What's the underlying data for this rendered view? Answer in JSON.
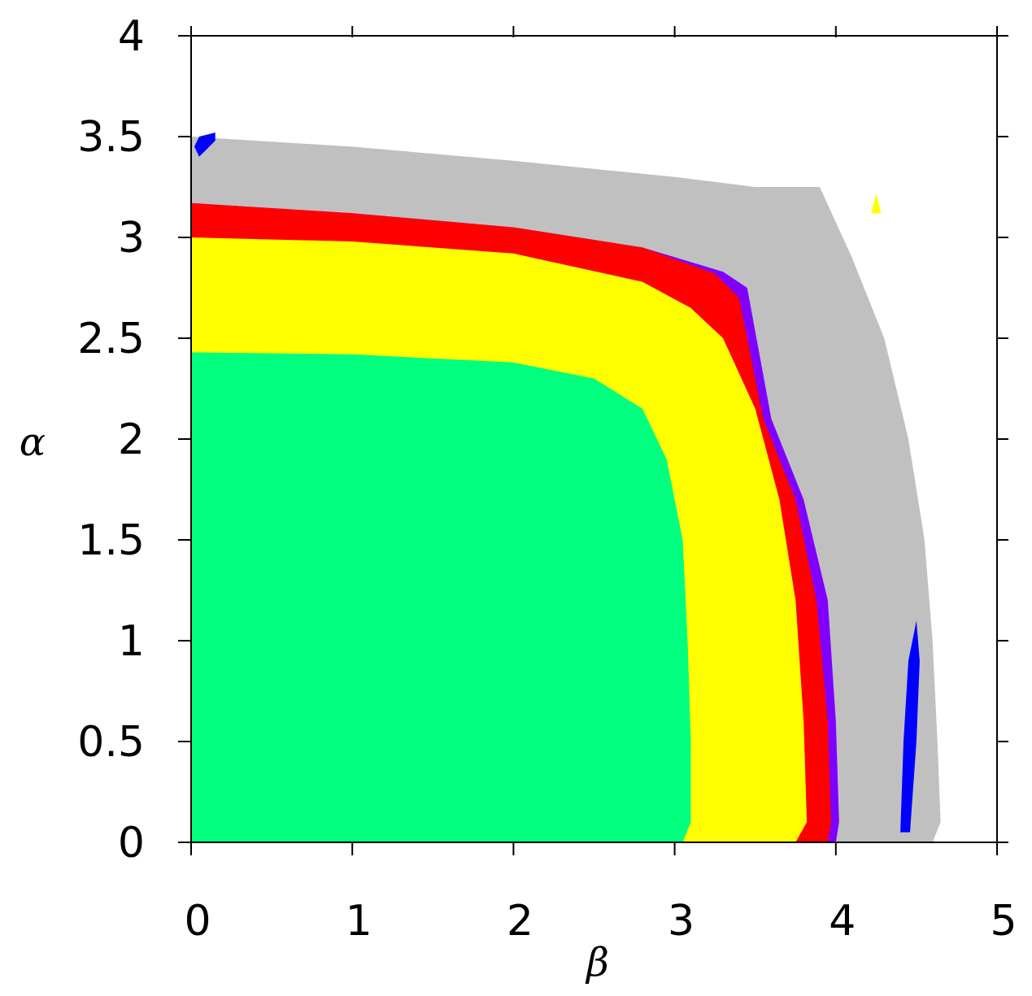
{
  "chart_data": {
    "type": "heatmap",
    "title": "",
    "xlabel": "β",
    "ylabel": "α",
    "xlim": [
      0,
      5
    ],
    "ylim": [
      0,
      4
    ],
    "xticks": [
      0,
      1,
      2,
      3,
      4,
      5
    ],
    "yticks": [
      0,
      0.5,
      1,
      1.5,
      2,
      2.5,
      3,
      3.5,
      4
    ],
    "xtick_labels": [
      "0",
      "1",
      "2",
      "3",
      "4",
      "5"
    ],
    "ytick_labels": [
      "0",
      "0.5",
      "1",
      "1.5",
      "2",
      "2.5",
      "3",
      "3.5",
      "4"
    ],
    "grid": false,
    "legend": "none",
    "regions": [
      {
        "color": "#c0c0c0",
        "boundary": [
          [
            0,
            0
          ],
          [
            0,
            3.5
          ],
          [
            1,
            3.45
          ],
          [
            2,
            3.38
          ],
          [
            3,
            3.3
          ],
          [
            3.5,
            3.25
          ],
          [
            3.9,
            3.25
          ],
          [
            4.1,
            2.9
          ],
          [
            4.3,
            2.5
          ],
          [
            4.45,
            2.0
          ],
          [
            4.55,
            1.5
          ],
          [
            4.6,
            1.0
          ],
          [
            4.63,
            0.5
          ],
          [
            4.65,
            0.1
          ],
          [
            4.6,
            0
          ]
        ]
      },
      {
        "color": "#8000ff",
        "boundary": [
          [
            0,
            0
          ],
          [
            0,
            3.17
          ],
          [
            1,
            3.12
          ],
          [
            2,
            3.05
          ],
          [
            2.8,
            2.95
          ],
          [
            3.3,
            2.83
          ],
          [
            3.45,
            2.75
          ],
          [
            3.6,
            2.1
          ],
          [
            3.8,
            1.7
          ],
          [
            3.95,
            1.2
          ],
          [
            4.0,
            0.6
          ],
          [
            4.02,
            0.1
          ],
          [
            4.0,
            0
          ]
        ]
      },
      {
        "color": "#ff0000",
        "boundary": [
          [
            0,
            0
          ],
          [
            0,
            3.17
          ],
          [
            1,
            3.12
          ],
          [
            2,
            3.05
          ],
          [
            2.8,
            2.95
          ],
          [
            3.25,
            2.82
          ],
          [
            3.4,
            2.7
          ],
          [
            3.55,
            2.1
          ],
          [
            3.75,
            1.7
          ],
          [
            3.88,
            1.2
          ],
          [
            3.95,
            0.6
          ],
          [
            3.97,
            0.1
          ],
          [
            3.95,
            0
          ]
        ]
      },
      {
        "color": "#ffff00",
        "boundary": [
          [
            0,
            0
          ],
          [
            0,
            3.0
          ],
          [
            1,
            2.98
          ],
          [
            2,
            2.92
          ],
          [
            2.8,
            2.78
          ],
          [
            3.1,
            2.65
          ],
          [
            3.3,
            2.5
          ],
          [
            3.5,
            2.15
          ],
          [
            3.65,
            1.7
          ],
          [
            3.75,
            1.2
          ],
          [
            3.8,
            0.6
          ],
          [
            3.82,
            0.1
          ],
          [
            3.75,
            0
          ]
        ]
      },
      {
        "color": "#00ff7f",
        "boundary": [
          [
            0,
            0
          ],
          [
            0,
            2.43
          ],
          [
            1,
            2.42
          ],
          [
            2,
            2.38
          ],
          [
            2.5,
            2.3
          ],
          [
            2.8,
            2.15
          ],
          [
            2.95,
            1.9
          ],
          [
            3.05,
            1.5
          ],
          [
            3.08,
            1.0
          ],
          [
            3.1,
            0.5
          ],
          [
            3.1,
            0.1
          ],
          [
            3.05,
            0
          ]
        ]
      }
    ],
    "features": [
      {
        "color": "#0000ff",
        "points": [
          [
            0.02,
            3.45
          ],
          [
            0.05,
            3.5
          ],
          [
            0.15,
            3.52
          ],
          [
            0.15,
            3.48
          ],
          [
            0.05,
            3.4
          ]
        ]
      },
      {
        "color": "#0000ff",
        "points": [
          [
            4.4,
            0.05
          ],
          [
            4.42,
            0.5
          ],
          [
            4.45,
            0.9
          ],
          [
            4.5,
            1.1
          ],
          [
            4.52,
            0.9
          ],
          [
            4.5,
            0.5
          ],
          [
            4.46,
            0.05
          ]
        ]
      },
      {
        "color": "#ffff00",
        "points": [
          [
            4.22,
            3.12
          ],
          [
            4.25,
            3.22
          ],
          [
            4.28,
            3.12
          ]
        ]
      }
    ]
  }
}
